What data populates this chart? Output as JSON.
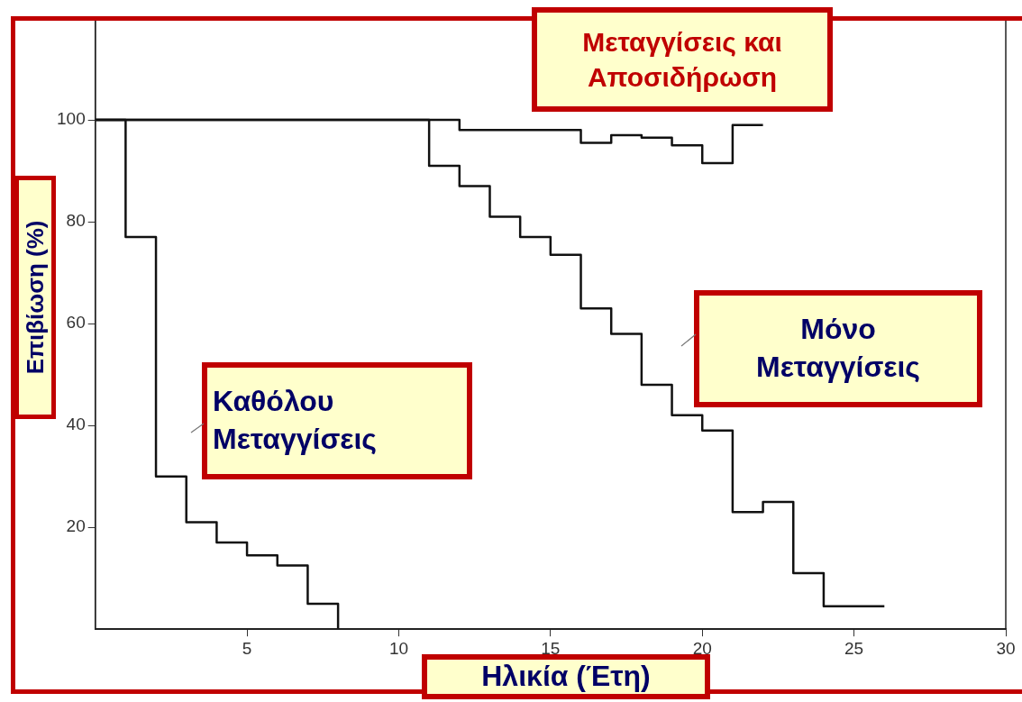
{
  "chart_data": {
    "type": "step",
    "title": null,
    "xlabel": "Ηλικία (Έτη)",
    "ylabel": "Επιβίωση (%)",
    "xlim": [
      0,
      30
    ],
    "xticks": [
      5,
      10,
      15,
      20,
      25,
      30
    ],
    "ylim": [
      0,
      120
    ],
    "yticks": [
      20,
      40,
      60,
      80,
      100
    ],
    "grid": false,
    "legend": false,
    "marker": "none",
    "line_style": "solid",
    "series": [
      {
        "name": "Καθόλου Μεταγγίσεις",
        "color": "#111111",
        "x": [
          0,
          1,
          2,
          3,
          4,
          5,
          6,
          7,
          8
        ],
        "values": [
          100,
          77,
          30,
          21,
          17,
          14.5,
          12.5,
          5,
          0
        ]
      },
      {
        "name": "Μόνο Μεταγγίσεις",
        "color": "#111111",
        "x": [
          0,
          11,
          12,
          13,
          14,
          15,
          16,
          17,
          18,
          19,
          20,
          21,
          22,
          23,
          24,
          26
        ],
        "values": [
          100,
          91,
          87,
          81,
          77,
          73.5,
          63,
          58,
          48,
          42,
          39,
          23,
          25,
          11,
          4.5,
          4.5
        ]
      },
      {
        "name": "Μεταγγίσεις και Αποσιδήρωση",
        "color": "#111111",
        "x": [
          0,
          12,
          16,
          17,
          18,
          19,
          20,
          21,
          22
        ],
        "values": [
          100,
          98,
          95.5,
          97,
          96.5,
          95,
          91.5,
          99,
          99
        ]
      }
    ]
  }
}
